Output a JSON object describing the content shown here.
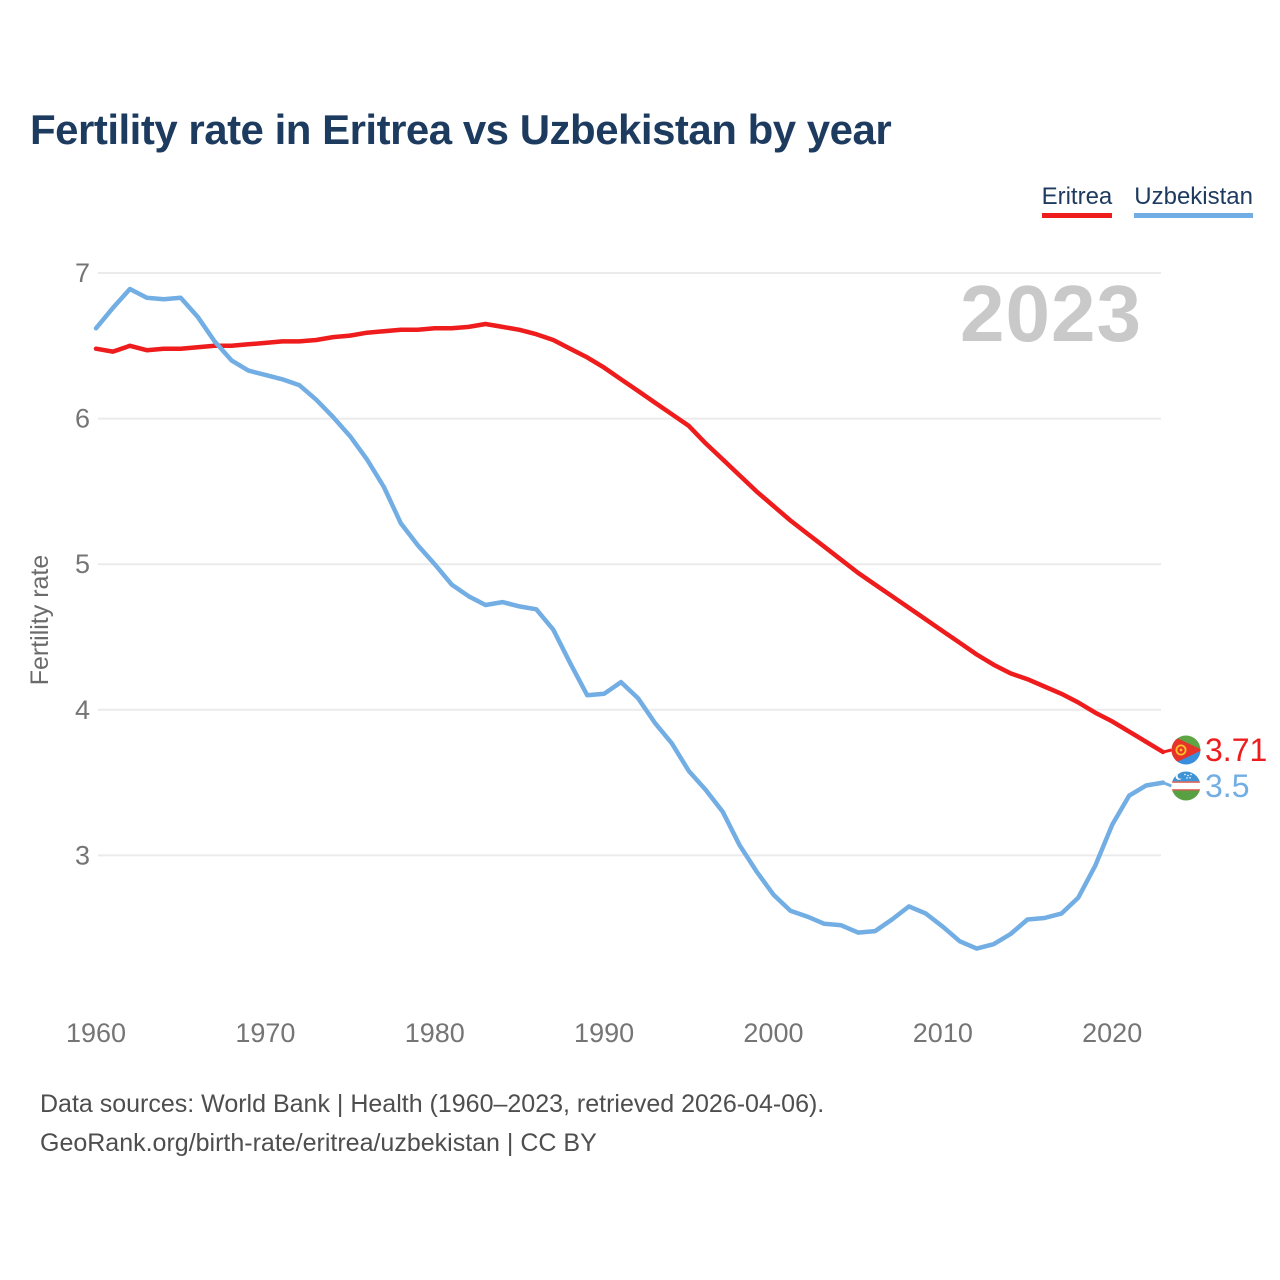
{
  "title": "Fertility rate in Eritrea vs Uzbekistan by year",
  "watermark": "2023",
  "legend": [
    {
      "label": "Eritrea",
      "color": "#ee1c1c"
    },
    {
      "label": "Uzbekistan",
      "color": "#72aee3"
    }
  ],
  "footer": {
    "line1": "Data sources: World Bank | Health (1960–2023, retrieved 2026-04-06).",
    "line2": "GeoRank.org/birth-rate/eritrea/uzbekistan | CC BY"
  },
  "colors": {
    "eritrea": "#ee1c1c",
    "uzbekistan": "#72aee3",
    "title_text": "#1d3a5f",
    "tick_text": "#757575",
    "axis_label_text": "#6b6b6b",
    "gridline": "#ebebeb",
    "watermark_text": "#c9c9c9",
    "footer_text": "#4e4e4e"
  },
  "chart_data": {
    "type": "line",
    "title": "Fertility rate in Eritrea vs Uzbekistan by year",
    "xlabel": "",
    "ylabel": "Fertility rate",
    "xlim": [
      1960,
      2023
    ],
    "ylim": [
      2.3,
      7.0
    ],
    "grid": "horizontal",
    "legend_position": "top-right",
    "yticks": [
      3,
      4,
      5,
      6,
      7
    ],
    "xticks": [
      1960,
      1970,
      1980,
      1990,
      2000,
      2010,
      2020
    ],
    "x": [
      1960,
      1961,
      1962,
      1963,
      1964,
      1965,
      1966,
      1967,
      1968,
      1969,
      1970,
      1971,
      1972,
      1973,
      1974,
      1975,
      1976,
      1977,
      1978,
      1979,
      1980,
      1981,
      1982,
      1983,
      1984,
      1985,
      1986,
      1987,
      1988,
      1989,
      1990,
      1991,
      1992,
      1993,
      1994,
      1995,
      1996,
      1997,
      1998,
      1999,
      2000,
      2001,
      2002,
      2003,
      2004,
      2005,
      2006,
      2007,
      2008,
      2009,
      2010,
      2011,
      2012,
      2013,
      2014,
      2015,
      2016,
      2017,
      2018,
      2019,
      2020,
      2021,
      2022,
      2023
    ],
    "series": [
      {
        "name": "Eritrea",
        "color": "#ee1c1c",
        "end_label": "3.71",
        "end_value": 3.71,
        "values": [
          6.48,
          6.46,
          6.5,
          6.47,
          6.48,
          6.48,
          6.49,
          6.5,
          6.5,
          6.51,
          6.52,
          6.53,
          6.53,
          6.54,
          6.56,
          6.57,
          6.59,
          6.6,
          6.61,
          6.61,
          6.62,
          6.62,
          6.63,
          6.65,
          6.63,
          6.61,
          6.58,
          6.54,
          6.48,
          6.42,
          6.35,
          6.27,
          6.19,
          6.11,
          6.03,
          5.95,
          5.83,
          5.72,
          5.61,
          5.5,
          5.4,
          5.3,
          5.21,
          5.12,
          5.03,
          4.94,
          4.86,
          4.78,
          4.7,
          4.62,
          4.54,
          4.46,
          4.38,
          4.31,
          4.25,
          4.21,
          4.16,
          4.11,
          4.05,
          3.98,
          3.92,
          3.85,
          3.78,
          3.71
        ]
      },
      {
        "name": "Uzbekistan",
        "color": "#72aee3",
        "end_label": "3.5",
        "end_value": 3.5,
        "values": [
          6.62,
          6.76,
          6.89,
          6.83,
          6.82,
          6.83,
          6.7,
          6.53,
          6.4,
          6.33,
          6.3,
          6.27,
          6.23,
          6.13,
          6.01,
          5.88,
          5.72,
          5.53,
          5.28,
          5.13,
          5.0,
          4.86,
          4.78,
          4.72,
          4.74,
          4.71,
          4.69,
          4.55,
          4.32,
          4.1,
          4.11,
          4.19,
          4.08,
          3.91,
          3.77,
          3.58,
          3.45,
          3.3,
          3.07,
          2.89,
          2.73,
          2.62,
          2.58,
          2.53,
          2.52,
          2.47,
          2.48,
          2.56,
          2.65,
          2.6,
          2.51,
          2.41,
          2.36,
          2.39,
          2.46,
          2.56,
          2.57,
          2.6,
          2.71,
          2.93,
          3.21,
          3.41,
          3.48,
          3.5
        ]
      }
    ]
  }
}
